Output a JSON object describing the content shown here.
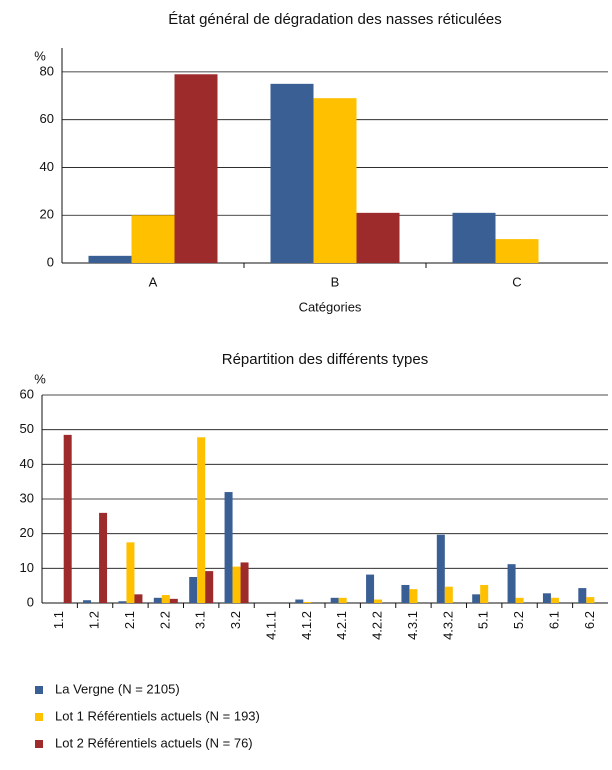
{
  "chart_data": [
    {
      "type": "bar",
      "title": "État général de dégradation des nasses réticulées",
      "y_label": "%",
      "x_label": "Catégories",
      "categories": [
        "A",
        "B",
        "C"
      ],
      "series": [
        {
          "color": "#3a5f94",
          "values": [
            3,
            75,
            21
          ]
        },
        {
          "color": "#ffc000",
          "values": [
            20,
            69,
            10
          ]
        },
        {
          "color": "#9e2b2b",
          "values": [
            79,
            21,
            0
          ]
        }
      ],
      "ylim": [
        0,
        90
      ],
      "yticks": [
        0,
        20,
        40,
        60,
        80
      ],
      "grid": true
    },
    {
      "type": "bar",
      "title": "Répartition des différents types",
      "y_label": "%",
      "categories": [
        "1.1",
        "1.2",
        "2.1",
        "2.2",
        "3.1",
        "3.2",
        "4.1.1",
        "4.1.2",
        "4.2.1",
        "4.2.2",
        "4.3.1",
        "4.3.2",
        "5.1",
        "5.2",
        "6.1",
        "6.2"
      ],
      "series": [
        {
          "name": "La Vergne (N = 2105)",
          "color": "#3a5f94",
          "values": [
            0,
            0.8,
            0.5,
            1.5,
            7.5,
            32,
            0,
            1,
            1.5,
            8.2,
            5.2,
            19.7,
            2.5,
            11.2,
            2.8,
            4.3
          ]
        },
        {
          "name": "Lot 1 Référentiels actuels (N = 193)",
          "color": "#ffc000",
          "values": [
            0,
            0,
            17.5,
            2.3,
            47.8,
            10.5,
            0,
            0.3,
            1.5,
            1,
            4,
            4.7,
            5.2,
            1.5,
            1.5,
            1.7
          ]
        },
        {
          "name": "Lot 2 Référentiels actuels (N = 76)",
          "color": "#9e2b2b",
          "values": [
            48.5,
            26,
            2.5,
            1.2,
            9.2,
            11.7,
            0,
            0,
            0,
            0,
            0,
            0,
            0,
            0,
            0,
            0
          ]
        }
      ],
      "ylim": [
        0,
        60
      ],
      "yticks": [
        0,
        10,
        20,
        30,
        40,
        50,
        60
      ],
      "grid": true
    }
  ]
}
